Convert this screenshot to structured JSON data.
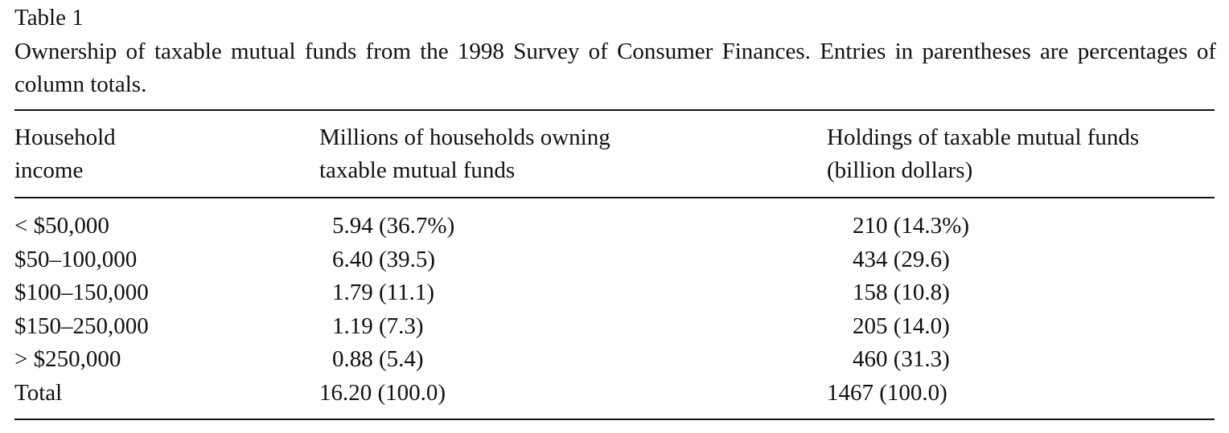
{
  "table": {
    "label": "Table 1",
    "caption": "Ownership of taxable mutual funds from the 1998 Survey of Consumer Finances. Entries in parentheses are percentages of column totals.",
    "header": [
      [
        "Household",
        "income"
      ],
      [
        "Millions of households owning",
        "taxable mutual funds"
      ],
      [
        "Holdings of taxable mutual funds",
        "(billion dollars)"
      ]
    ],
    "rows": [
      [
        "< $50,000",
        "5.94 (36.7%)",
        "210 (14.3%)"
      ],
      [
        "$50–100,000",
        "6.40 (39.5)",
        "434 (29.6)"
      ],
      [
        "$100–150,000",
        "1.79 (11.1)",
        "158 (10.8)"
      ],
      [
        "$150–250,000",
        "1.19 (7.3)",
        "205 (14.0)"
      ],
      [
        "> $250,000",
        "0.88 (5.4)",
        "460 (31.3)"
      ],
      [
        "Total",
        "16.20 (100.0)",
        "1467 (100.0)"
      ]
    ]
  }
}
